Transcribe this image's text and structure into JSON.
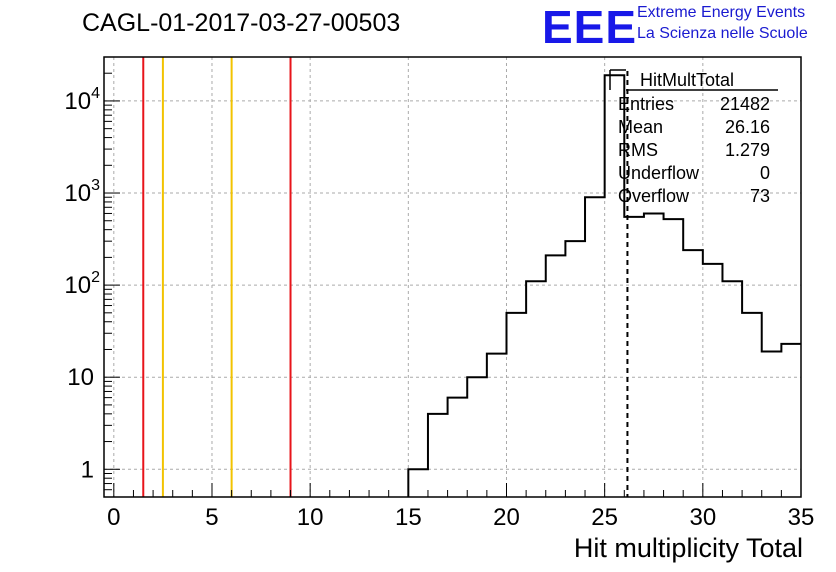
{
  "title": "CAGL-01-2017-03-27-00503",
  "logo": {
    "mark": "EEE",
    "line1": "Extreme Energy Events",
    "line2": "La Scienza nelle Scuole",
    "color": "#1818e8"
  },
  "stats": {
    "name": "HitMultTotal",
    "rows": [
      {
        "key": "Entries",
        "value": "21482"
      },
      {
        "key": "Mean",
        "value": "26.16"
      },
      {
        "key": "RMS",
        "value": "1.279"
      },
      {
        "key": "Underflow",
        "value": "0"
      },
      {
        "key": "Overflow",
        "value": "73"
      }
    ]
  },
  "chart_data": {
    "type": "histogram",
    "title": "CAGL-01-2017-03-27-00503",
    "xlabel": "Hit multiplicity Total",
    "ylabel": "",
    "xlim": [
      -0.5,
      35
    ],
    "ylim": [
      0.5,
      30000
    ],
    "yscale": "log",
    "grid": true,
    "x_ticks": [
      0,
      5,
      10,
      15,
      20,
      25,
      30,
      35
    ],
    "y_ticks": [
      {
        "value": 1,
        "label": "1"
      },
      {
        "value": 10,
        "label": "10"
      },
      {
        "value": 100,
        "label": "10",
        "exp": "2"
      },
      {
        "value": 1000,
        "label": "10",
        "exp": "3"
      },
      {
        "value": 10000,
        "label": "10",
        "exp": "4"
      }
    ],
    "bin_width": 1,
    "bins": [
      {
        "x": 15.5,
        "count": 1
      },
      {
        "x": 16.5,
        "count": 4
      },
      {
        "x": 17.5,
        "count": 6
      },
      {
        "x": 18.5,
        "count": 10
      },
      {
        "x": 19.5,
        "count": 18
      },
      {
        "x": 20.5,
        "count": 50
      },
      {
        "x": 21.5,
        "count": 110
      },
      {
        "x": 22.5,
        "count": 210
      },
      {
        "x": 23.5,
        "count": 300
      },
      {
        "x": 24.5,
        "count": 900
      },
      {
        "x": 25.5,
        "count": 19000
      },
      {
        "x": 26.5,
        "count": 550
      },
      {
        "x": 27.5,
        "count": 600
      },
      {
        "x": 28.5,
        "count": 520
      },
      {
        "x": 29.5,
        "count": 240
      },
      {
        "x": 30.5,
        "count": 170
      },
      {
        "x": 31.5,
        "count": 110
      },
      {
        "x": 32.5,
        "count": 50
      },
      {
        "x": 33.5,
        "count": 19
      },
      {
        "x": 34.5,
        "count": 23
      }
    ],
    "mean_line": {
      "x": 26.16,
      "style": "dashed",
      "color": "#000000"
    },
    "ref_lines": [
      {
        "x": 1.5,
        "color": "#e8141a"
      },
      {
        "x": 2.5,
        "color": "#f2c300"
      },
      {
        "x": 6,
        "color": "#f2c300"
      },
      {
        "x": 9,
        "color": "#e8141a"
      }
    ]
  }
}
